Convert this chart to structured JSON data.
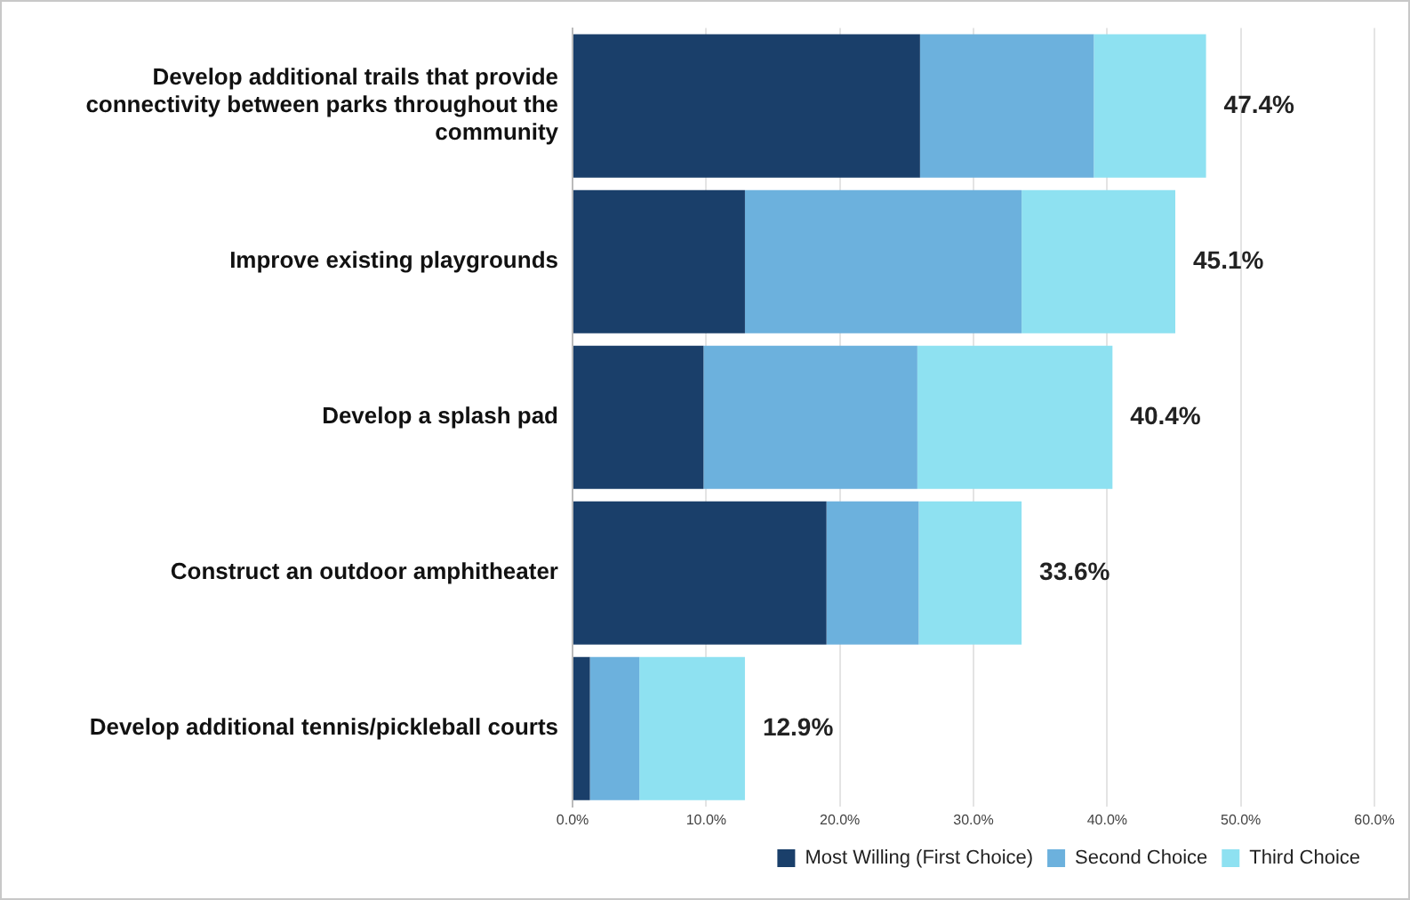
{
  "chart_data": {
    "type": "bar",
    "orientation": "horizontal",
    "stacked": true,
    "categories": [
      "Develop additional trails that provide connectivity between parks throughout the community",
      "Improve existing playgrounds",
      "Develop a splash pad",
      "Construct an outdoor amphitheater",
      "Develop additional tennis/pickleball courts"
    ],
    "series": [
      {
        "name": "Most Willing (First Choice)",
        "color": "#1a3f6a",
        "values": [
          26.0,
          12.9,
          9.8,
          19.0,
          1.3
        ]
      },
      {
        "name": "Second Choice",
        "color": "#6cb1dd",
        "values": [
          13.0,
          20.7,
          16.0,
          6.9,
          3.7
        ]
      },
      {
        "name": "Third Choice",
        "color": "#8ee1f1",
        "values": [
          8.4,
          11.5,
          14.6,
          7.7,
          7.9
        ]
      }
    ],
    "totals": [
      "47.4%",
      "45.1%",
      "40.4%",
      "33.6%",
      "12.9%"
    ],
    "xlim": [
      0,
      60
    ],
    "xticks": [
      {
        "value": 0,
        "label": "0.0%"
      },
      {
        "value": 10,
        "label": "10.0%"
      },
      {
        "value": 20,
        "label": "20.0%"
      },
      {
        "value": 30,
        "label": "30.0%"
      },
      {
        "value": 40,
        "label": "40.0%"
      },
      {
        "value": 50,
        "label": "50.0%"
      },
      {
        "value": 60,
        "label": "60.0%"
      }
    ],
    "grid": "x",
    "legend": "bottom right"
  }
}
